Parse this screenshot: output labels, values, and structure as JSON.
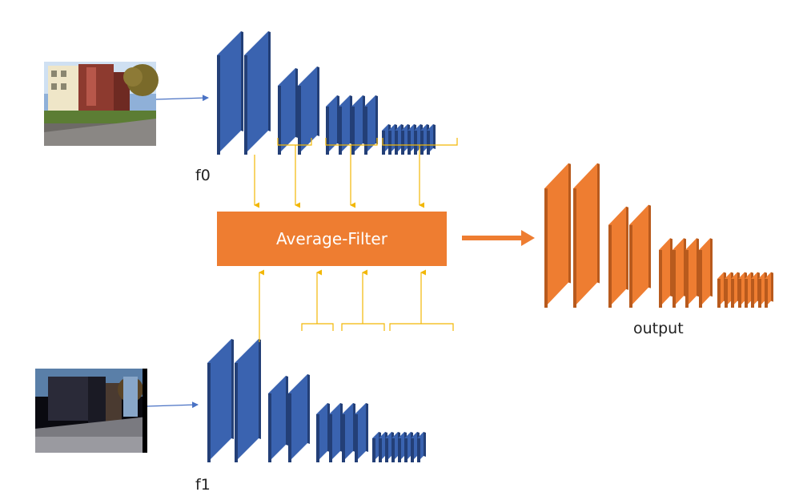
{
  "labels": {
    "top_input": "f0",
    "bottom_input": "f1",
    "filter": "Average-Filter",
    "output": "output"
  },
  "colors": {
    "encoder_front": "#3a63b0",
    "encoder_side": "#233f77",
    "encoder_top": "#6e8fcf",
    "output_front": "#ee7d31",
    "output_side": "#b85a1d",
    "output_top": "#f5a76e",
    "connector": "#f2b705",
    "input_arrow": "#4a72c4",
    "filter_box": "#ee7d31"
  },
  "images": {
    "top_photo": "building-street-photo",
    "bottom_photo": "dark-street-photo"
  }
}
